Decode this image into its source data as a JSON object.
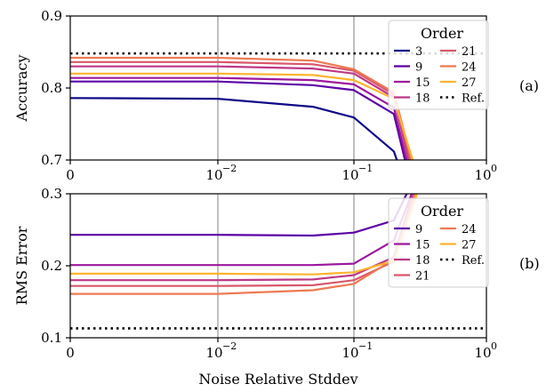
{
  "chart_data": [
    {
      "type": "line",
      "panel_label": "(a)",
      "ylabel": "Accuracy",
      "xlabel": "",
      "xscale": "symlog",
      "xticks": [
        "0",
        "10",
        "−2",
        "10",
        "−1",
        "10",
        "0"
      ],
      "yticks": [
        "0.7",
        "0.8",
        "0.9"
      ],
      "ylim": [
        0.7,
        0.9
      ],
      "grid": "vertical",
      "x": [
        0,
        0.01,
        0.05,
        0.1,
        0.2,
        0.3
      ],
      "legend": {
        "title": "Order",
        "position": "top-right"
      },
      "series": [
        {
          "name": "3",
          "color": "#0d0887",
          "values": [
            0.786,
            0.785,
            0.774,
            0.759,
            0.712,
            0.62
          ]
        },
        {
          "name": "9",
          "color": "#5c01a6",
          "values": [
            0.809,
            0.809,
            0.804,
            0.797,
            0.764,
            0.63
          ]
        },
        {
          "name": "15",
          "color": "#9c179e",
          "values": [
            0.814,
            0.814,
            0.811,
            0.805,
            0.773,
            0.64
          ]
        },
        {
          "name": "18",
          "color": "#bd3786",
          "values": [
            0.83,
            0.83,
            0.827,
            0.82,
            0.787,
            0.65
          ]
        },
        {
          "name": "21",
          "color": "#d8576b",
          "values": [
            0.836,
            0.836,
            0.833,
            0.824,
            0.791,
            0.66
          ]
        },
        {
          "name": "24",
          "color": "#ed7953",
          "values": [
            0.842,
            0.842,
            0.838,
            0.826,
            0.794,
            0.67
          ]
        },
        {
          "name": "27",
          "color": "#fdb42f",
          "values": [
            0.82,
            0.82,
            0.818,
            0.811,
            0.785,
            0.68
          ]
        }
      ],
      "reference": {
        "name": "Ref.",
        "value": 0.848
      }
    },
    {
      "type": "line",
      "panel_label": "(b)",
      "ylabel": "RMS Error",
      "xlabel": "Noise Relative Stddev",
      "xscale": "symlog",
      "xticks": [
        "0",
        "10",
        "−2",
        "10",
        "−1",
        "10",
        "0"
      ],
      "yticks": [
        "0.1",
        "0.2",
        "0.3"
      ],
      "ylim": [
        0.1,
        0.3
      ],
      "grid": "vertical",
      "x": [
        0,
        0.01,
        0.05,
        0.1,
        0.2,
        0.3
      ],
      "legend": {
        "title": "Order",
        "position": "top-right"
      },
      "series": [
        {
          "name": "9",
          "color": "#5c01a6",
          "values": [
            0.243,
            0.243,
            0.242,
            0.246,
            0.263,
            0.33
          ]
        },
        {
          "name": "15",
          "color": "#9c179e",
          "values": [
            0.201,
            0.201,
            0.201,
            0.203,
            0.235,
            0.32
          ]
        },
        {
          "name": "18",
          "color": "#bd3786",
          "values": [
            0.18,
            0.18,
            0.181,
            0.187,
            0.212,
            0.32
          ]
        },
        {
          "name": "21",
          "color": "#d8576b",
          "values": [
            0.172,
            0.172,
            0.173,
            0.18,
            0.206,
            0.31
          ]
        },
        {
          "name": "24",
          "color": "#ed7953",
          "values": [
            0.161,
            0.161,
            0.166,
            0.175,
            0.209,
            0.31
          ]
        },
        {
          "name": "27",
          "color": "#fdb42f",
          "values": [
            0.189,
            0.189,
            0.188,
            0.191,
            0.207,
            0.3
          ]
        }
      ],
      "reference": {
        "name": "Ref.",
        "value": 0.113
      }
    }
  ]
}
